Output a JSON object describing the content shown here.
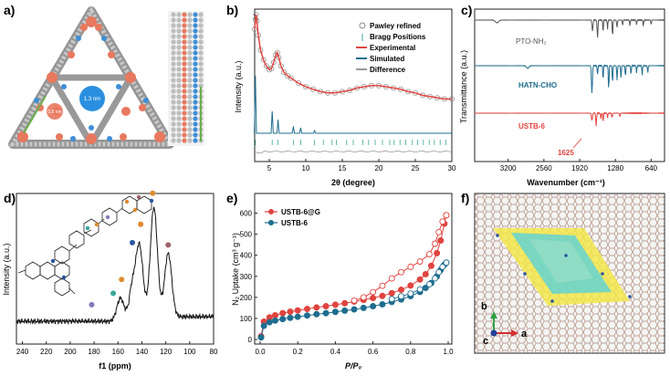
{
  "figure": {
    "panel_labels": [
      "a)",
      "b)",
      "c)",
      "d)",
      "e)",
      "f)"
    ]
  },
  "panel_a": {
    "pore_label": "1.3 nm",
    "small_label": "0.8 nm"
  },
  "chart_data": [
    {
      "panel": "b",
      "type": "line",
      "xlabel": "2θ (degree)",
      "ylabel": "Intensity (a.u.)",
      "xlim": [
        3,
        30
      ],
      "x_ticks": [
        "5",
        "10",
        "15",
        "20",
        "25",
        "30"
      ],
      "legend": [
        "Pawley refined",
        "Bragg Positions",
        "Experimental",
        "Simulated",
        "Difference"
      ],
      "legend_position": "top-right",
      "colors": {
        "experimental": "#e0443f",
        "simulated": "#1f6d8f",
        "bragg": "#3aa89a",
        "difference": "#9a9a9a",
        "pawley": "#888888"
      },
      "series": [
        {
          "name": "Experimental",
          "x": [
            3,
            3.1,
            3.2,
            3.3,
            3.5,
            3.8,
            4.2,
            4.6,
            5.0,
            5.3,
            5.6,
            5.9,
            6.1,
            6.3,
            6.6,
            7.0,
            7.5,
            8,
            9,
            10,
            11,
            12,
            13,
            14,
            15,
            16,
            17,
            18,
            19,
            20,
            21,
            22,
            23,
            24,
            25,
            26,
            27,
            28,
            29,
            30
          ],
          "y": [
            0.85,
            0.93,
            0.97,
            0.92,
            0.8,
            0.68,
            0.6,
            0.55,
            0.52,
            0.53,
            0.58,
            0.64,
            0.66,
            0.62,
            0.55,
            0.5,
            0.47,
            0.45,
            0.41,
            0.38,
            0.36,
            0.34,
            0.33,
            0.33,
            0.34,
            0.35,
            0.37,
            0.38,
            0.39,
            0.39,
            0.38,
            0.37,
            0.36,
            0.34,
            0.33,
            0.31,
            0.3,
            0.29,
            0.28,
            0.28
          ]
        },
        {
          "name": "Simulated",
          "peaks": [
            {
              "x": 3.1,
              "h": 0.42
            },
            {
              "x": 5.4,
              "h": 0.16
            },
            {
              "x": 6.2,
              "h": 0.1
            },
            {
              "x": 8.3,
              "h": 0.05
            },
            {
              "x": 9.3,
              "h": 0.04
            },
            {
              "x": 11.2,
              "h": 0.02
            }
          ]
        },
        {
          "name": "Bragg Positions",
          "x": [
            3.1,
            5.4,
            6.2,
            8.3,
            9.3,
            11.2,
            12.4,
            13.6,
            14.2,
            15.6,
            16.5,
            17.8,
            18.6,
            19.5,
            20.5,
            21.5,
            22.1,
            22.9,
            23.7,
            24.6,
            25.3,
            26.1,
            26.9,
            27.6,
            28.4,
            29.2
          ]
        }
      ]
    },
    {
      "panel": "c",
      "type": "line",
      "xlabel": "Wavenumber (cm⁻¹)",
      "ylabel": "Transmittance (a.u.)",
      "xlim": [
        3800,
        400
      ],
      "x_ticks": [
        "3200",
        "2560",
        "1920",
        "1280",
        "640"
      ],
      "annotation": "1625",
      "series": [
        {
          "name": "PTO-NH₂",
          "color": "#555555"
        },
        {
          "name": "HATN-CHO",
          "color": "#1f6d8f"
        },
        {
          "name": "USTB-6",
          "color": "#e0443f"
        }
      ]
    },
    {
      "panel": "d",
      "type": "line",
      "xlabel": "f1 (ppm)",
      "ylabel": "Intensity (a.u.)",
      "xlim": [
        245,
        80
      ],
      "x_ticks": [
        "240",
        "220",
        "200",
        "180",
        "160",
        "140",
        "120",
        "100",
        "80"
      ],
      "peaks_ppm": [
        {
          "x": 158,
          "h": 0.2
        },
        {
          "x": 148,
          "h": 0.25
        },
        {
          "x": 142,
          "h": 0.6
        },
        {
          "x": 130,
          "h": 0.95
        },
        {
          "x": 118,
          "h": 0.55
        }
      ],
      "markers": [
        {
          "ppm": 182,
          "color": "#8878b8"
        },
        {
          "ppm": 164,
          "color": "#3aa89a"
        },
        {
          "ppm": 157,
          "color": "#e08a2e"
        },
        {
          "ppm": 148,
          "color": "#2a55a0"
        },
        {
          "ppm": 141,
          "color": "#e08a2e"
        },
        {
          "ppm": 131,
          "color": "#e08a2e"
        },
        {
          "ppm": 118,
          "color": "#a0606a"
        }
      ]
    },
    {
      "panel": "e",
      "type": "scatter",
      "xlabel": "P/P₀",
      "ylabel": "N₂ Uptake (cm³ g⁻¹)",
      "xlim": [
        0,
        1
      ],
      "ylim": [
        0,
        650
      ],
      "x_ticks": [
        "0.0",
        "0.2",
        "0.4",
        "0.6",
        "0.8",
        "1.0"
      ],
      "y_ticks": [
        "0",
        "100",
        "200",
        "300",
        "400",
        "500",
        "600"
      ],
      "legend_position": "top-left",
      "series": [
        {
          "name": "USTB-6@G",
          "color": "#e0443f",
          "adsorption_x": [
            0.005,
            0.02,
            0.05,
            0.08,
            0.12,
            0.16,
            0.2,
            0.25,
            0.3,
            0.35,
            0.4,
            0.45,
            0.5,
            0.55,
            0.6,
            0.65,
            0.7,
            0.75,
            0.8,
            0.85,
            0.88,
            0.91,
            0.94,
            0.96,
            0.98,
            0.99
          ],
          "adsorption_y": [
            15,
            85,
            105,
            115,
            125,
            132,
            138,
            145,
            152,
            158,
            165,
            172,
            180,
            188,
            197,
            207,
            220,
            236,
            256,
            285,
            310,
            350,
            410,
            470,
            550,
            590
          ],
          "desorption_x": [
            0.99,
            0.97,
            0.95,
            0.93,
            0.9,
            0.85,
            0.8,
            0.75,
            0.7,
            0.65,
            0.6,
            0.55,
            0.5
          ],
          "desorption_y": [
            590,
            560,
            510,
            455,
            405,
            370,
            345,
            320,
            290,
            255,
            225,
            200,
            185
          ]
        },
        {
          "name": "USTB-6",
          "color": "#1f6d8f",
          "adsorption_x": [
            0.005,
            0.02,
            0.05,
            0.08,
            0.12,
            0.16,
            0.2,
            0.25,
            0.3,
            0.35,
            0.4,
            0.45,
            0.5,
            0.55,
            0.6,
            0.65,
            0.7,
            0.75,
            0.8,
            0.85,
            0.88,
            0.91,
            0.94,
            0.96,
            0.98,
            0.99
          ],
          "adsorption_y": [
            10,
            65,
            82,
            90,
            97,
            103,
            108,
            114,
            120,
            125,
            131,
            137,
            143,
            150,
            158,
            167,
            178,
            190,
            206,
            226,
            245,
            268,
            300,
            330,
            355,
            365
          ],
          "desorption_x": [
            0.99,
            0.97,
            0.95,
            0.93,
            0.9,
            0.85,
            0.8,
            0.75,
            0.7
          ],
          "desorption_y": [
            365,
            345,
            320,
            290,
            262,
            238,
            218,
            205,
            192
          ]
        }
      ]
    }
  ],
  "panel_c_labels": {
    "top": "PTO-NH₂",
    "mid": "HATN-CHO",
    "bot": "USTB-6",
    "peak": "1625"
  },
  "panel_f": {
    "axis_b": "b",
    "axis_a": "a",
    "axis_c": "c"
  }
}
